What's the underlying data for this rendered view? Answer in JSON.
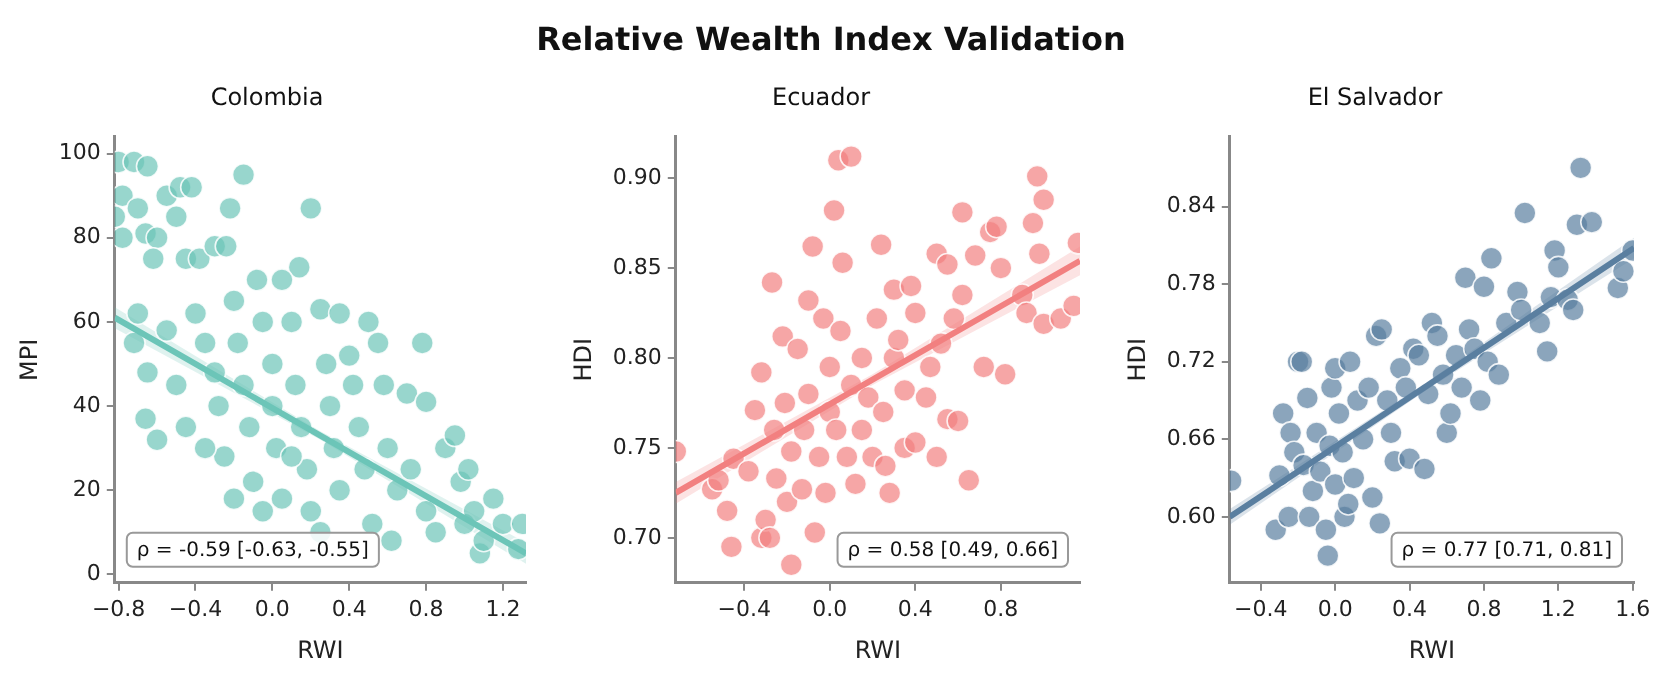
{
  "chart_data": [
    {
      "type": "scatter",
      "title": "Colombia",
      "xlabel": "RWI",
      "ylabel": "MPI",
      "annotations": [
        "Relative Wealth Index Validation",
        "ρ = -0.59 [-0.63, -0.55]"
      ],
      "xlim": [
        -0.82,
        1.32
      ],
      "ylim": [
        -2,
        104
      ],
      "xticks": [
        {
          "value": -0.8,
          "label": "−0.8"
        },
        {
          "value": -0.4,
          "label": "−0.4"
        },
        {
          "value": 0,
          "label": "0.0"
        },
        {
          "value": 0.4,
          "label": "0.4"
        },
        {
          "value": 0.8,
          "label": "0.8"
        },
        {
          "value": 1.2,
          "label": "1.2"
        }
      ],
      "yticks": [
        0,
        20,
        40,
        60,
        80,
        100
      ],
      "grid": false,
      "series": [
        {
          "marker": "circle",
          "color": "#6cc5b8",
          "x": [
            -0.8,
            -0.72,
            -0.65,
            -0.78,
            -0.82,
            -0.78,
            -0.7,
            -0.66,
            -0.6,
            -0.55,
            -0.48,
            -0.42,
            -0.5,
            -0.45,
            -0.38,
            -0.3,
            -0.22,
            -0.24,
            -0.15,
            0.2,
            0.14,
            -0.62,
            -0.7,
            -0.72,
            -0.65,
            -0.66,
            -0.6,
            -0.55,
            -0.5,
            -0.45,
            -0.4,
            -0.35,
            -0.3,
            -0.28,
            -0.25,
            -0.2,
            -0.18,
            -0.15,
            -0.12,
            -0.1,
            -0.08,
            -0.05,
            0.0,
            0.0,
            0.02,
            0.05,
            0.05,
            0.1,
            0.12,
            0.15,
            0.18,
            0.2,
            0.25,
            0.28,
            0.3,
            0.32,
            0.35,
            0.35,
            0.4,
            0.42,
            0.45,
            0.48,
            0.5,
            0.52,
            0.55,
            0.58,
            0.6,
            0.62,
            0.65,
            0.7,
            0.72,
            0.78,
            0.8,
            0.8,
            0.85,
            0.9,
            0.95,
            0.98,
            1.0,
            1.02,
            1.05,
            1.08,
            1.1,
            1.15,
            1.2,
            1.3,
            1.28,
            -0.35,
            -0.2,
            -0.05,
            0.1,
            0.25
          ],
          "values": [
            98,
            98,
            97,
            90,
            85,
            80,
            87,
            81,
            80,
            90,
            92,
            92,
            85,
            75,
            75,
            78,
            87,
            78,
            95,
            87,
            73,
            75,
            62,
            55,
            48,
            37,
            32,
            58,
            45,
            35,
            62,
            55,
            48,
            40,
            28,
            65,
            55,
            45,
            35,
            22,
            70,
            60,
            50,
            40,
            30,
            18,
            70,
            60,
            45,
            35,
            25,
            15,
            63,
            50,
            40,
            30,
            20,
            62,
            52,
            45,
            35,
            25,
            60,
            12,
            55,
            45,
            30,
            8,
            20,
            43,
            25,
            55,
            41,
            15,
            10,
            30,
            33,
            22,
            12,
            25,
            15,
            5,
            8,
            18,
            12,
            12,
            6,
            30,
            18,
            15,
            28,
            10
          ]
        },
        {
          "type": "line",
          "marker": "none",
          "color": "#6cc5b8",
          "x": [
            -0.82,
            0.25,
            1.32
          ],
          "values": [
            61,
            33,
            5
          ],
          "lower": [
            58.5,
            32,
            2.5
          ],
          "upper": [
            63.5,
            34,
            7.5
          ]
        }
      ]
    },
    {
      "type": "scatter",
      "title": "Ecuador",
      "xlabel": "RWI",
      "ylabel": "HDI",
      "annotations": [
        "ρ = 0.58 [0.49, 0.66]"
      ],
      "xlim": [
        -0.72,
        1.17
      ],
      "ylim": [
        0.675,
        0.923
      ],
      "xticks": [
        {
          "value": -0.4,
          "label": "−0.4"
        },
        {
          "value": 0,
          "label": "0.0"
        },
        {
          "value": 0.4,
          "label": "0.4"
        },
        {
          "value": 0.8,
          "label": "0.8"
        }
      ],
      "yticks": [
        {
          "value": 0.7,
          "label": "0.70"
        },
        0.75,
        {
          "value": 0.8,
          "label": "0.80"
        },
        0.85,
        {
          "value": 0.9,
          "label": "0.90"
        }
      ],
      "grid": false,
      "series": [
        {
          "marker": "circle",
          "color": "#f28080",
          "x": [
            -0.72,
            -0.55,
            -0.52,
            -0.48,
            -0.46,
            -0.45,
            -0.38,
            -0.35,
            -0.32,
            -0.32,
            -0.3,
            -0.28,
            -0.27,
            -0.26,
            -0.25,
            -0.22,
            -0.21,
            -0.2,
            -0.18,
            -0.18,
            -0.15,
            -0.13,
            -0.12,
            -0.1,
            -0.1,
            -0.08,
            -0.07,
            -0.05,
            -0.03,
            -0.02,
            0.0,
            0.0,
            0.02,
            0.03,
            0.04,
            0.05,
            0.06,
            0.08,
            0.1,
            0.1,
            0.12,
            0.15,
            0.15,
            0.18,
            0.2,
            0.22,
            0.24,
            0.25,
            0.26,
            0.28,
            0.3,
            0.3,
            0.32,
            0.35,
            0.35,
            0.38,
            0.4,
            0.4,
            0.45,
            0.47,
            0.5,
            0.5,
            0.52,
            0.55,
            0.55,
            0.58,
            0.6,
            0.62,
            0.62,
            0.65,
            0.68,
            0.72,
            0.75,
            0.78,
            0.8,
            0.82,
            0.9,
            0.92,
            0.95,
            0.97,
            0.98,
            1.0,
            1.0,
            1.08,
            1.14,
            1.16
          ],
          "values": [
            0.748,
            0.727,
            0.732,
            0.715,
            0.695,
            0.744,
            0.737,
            0.771,
            0.792,
            0.7,
            0.71,
            0.7,
            0.842,
            0.76,
            0.733,
            0.812,
            0.775,
            0.72,
            0.685,
            0.748,
            0.805,
            0.727,
            0.76,
            0.78,
            0.832,
            0.862,
            0.703,
            0.745,
            0.822,
            0.725,
            0.77,
            0.795,
            0.882,
            0.76,
            0.91,
            0.815,
            0.853,
            0.745,
            0.912,
            0.785,
            0.73,
            0.76,
            0.8,
            0.778,
            0.745,
            0.822,
            0.863,
            0.77,
            0.74,
            0.725,
            0.8,
            0.838,
            0.81,
            0.75,
            0.782,
            0.84,
            0.825,
            0.753,
            0.778,
            0.795,
            0.858,
            0.745,
            0.808,
            0.766,
            0.852,
            0.822,
            0.765,
            0.881,
            0.835,
            0.732,
            0.857,
            0.795,
            0.87,
            0.873,
            0.85,
            0.791,
            0.835,
            0.825,
            0.875,
            0.901,
            0.858,
            0.888,
            0.819,
            0.822,
            0.829,
            0.864
          ]
        },
        {
          "type": "line",
          "marker": "none",
          "color": "#f28080",
          "x": [
            -0.72,
            0.2,
            1.17
          ],
          "values": [
            0.725,
            0.788,
            0.854
          ],
          "lower": [
            0.719,
            0.785,
            0.846
          ],
          "upper": [
            0.731,
            0.791,
            0.862
          ]
        }
      ]
    },
    {
      "type": "scatter",
      "title": "El Salvador",
      "xlabel": "RWI",
      "ylabel": "HDI",
      "annotations": [
        "ρ = 0.77 [0.71, 0.81]"
      ],
      "xlim": [
        -0.567,
        1.607
      ],
      "ylim": [
        0.549,
        0.894
      ],
      "xticks": [
        {
          "value": -0.4,
          "label": "−0.4"
        },
        {
          "value": 0,
          "label": "0.0"
        },
        {
          "value": 0.4,
          "label": "0.4"
        },
        {
          "value": 0.8,
          "label": "0.8"
        },
        {
          "value": 1.2,
          "label": "1.2"
        },
        {
          "value": 1.6,
          "label": "1.6"
        }
      ],
      "yticks": [
        {
          "value": 0.6,
          "label": "0.60"
        },
        0.66,
        0.72,
        0.78,
        0.84
      ],
      "grid": false,
      "series": [
        {
          "marker": "circle",
          "color": "#5a7fa0",
          "x": [
            -0.56,
            -0.32,
            -0.3,
            -0.28,
            -0.25,
            -0.24,
            -0.22,
            -0.2,
            -0.18,
            -0.17,
            -0.15,
            -0.14,
            -0.12,
            -0.1,
            -0.08,
            -0.05,
            -0.04,
            -0.03,
            -0.02,
            0.0,
            0.0,
            0.02,
            0.04,
            0.05,
            0.07,
            0.08,
            0.1,
            0.12,
            0.15,
            0.18,
            0.2,
            0.22,
            0.24,
            0.25,
            0.28,
            0.3,
            0.32,
            0.35,
            0.38,
            0.4,
            0.42,
            0.45,
            0.48,
            0.5,
            0.52,
            0.55,
            0.58,
            0.6,
            0.62,
            0.65,
            0.68,
            0.7,
            0.72,
            0.75,
            0.78,
            0.8,
            0.82,
            0.84,
            0.88,
            0.92,
            0.98,
            1.0,
            1.02,
            1.1,
            1.14,
            1.16,
            1.18,
            1.2,
            1.25,
            1.28,
            1.3,
            1.32,
            1.38,
            1.52,
            1.55,
            1.6
          ],
          "values": [
            0.628,
            0.59,
            0.632,
            0.68,
            0.6,
            0.665,
            0.65,
            0.72,
            0.72,
            0.64,
            0.692,
            0.6,
            0.62,
            0.665,
            0.635,
            0.59,
            0.57,
            0.655,
            0.7,
            0.625,
            0.715,
            0.68,
            0.65,
            0.6,
            0.61,
            0.72,
            0.63,
            0.69,
            0.66,
            0.7,
            0.615,
            0.74,
            0.595,
            0.745,
            0.69,
            0.665,
            0.643,
            0.715,
            0.7,
            0.645,
            0.73,
            0.725,
            0.637,
            0.695,
            0.75,
            0.74,
            0.71,
            0.665,
            0.68,
            0.725,
            0.7,
            0.785,
            0.745,
            0.73,
            0.69,
            0.778,
            0.72,
            0.8,
            0.71,
            0.75,
            0.774,
            0.76,
            0.835,
            0.75,
            0.728,
            0.77,
            0.806,
            0.793,
            0.768,
            0.76,
            0.826,
            0.87,
            0.828,
            0.777,
            0.79,
            0.806
          ]
        },
        {
          "type": "line",
          "marker": "none",
          "color": "#5a7fa0",
          "x": [
            -0.567,
            0.5,
            1.607
          ],
          "values": [
            0.6,
            0.702,
            0.808
          ],
          "lower": [
            0.594,
            0.699,
            0.8
          ],
          "upper": [
            0.606,
            0.705,
            0.816
          ]
        }
      ]
    }
  ]
}
